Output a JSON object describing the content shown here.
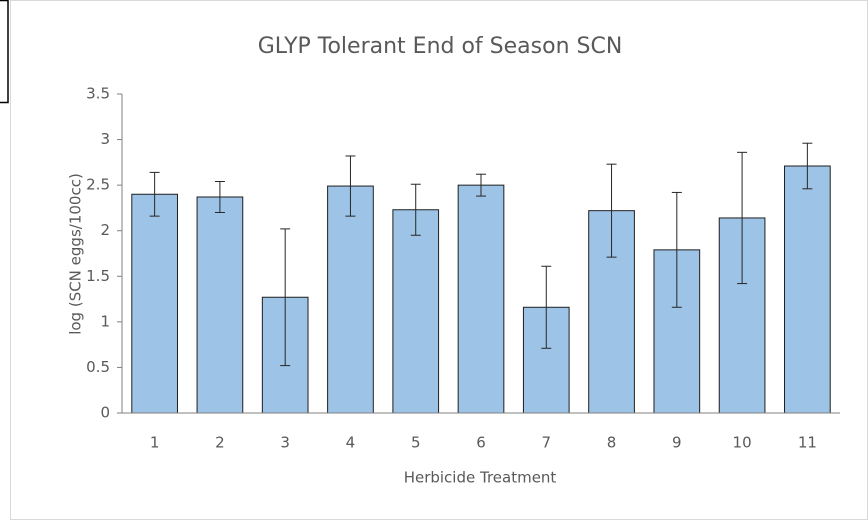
{
  "chart_data": {
    "type": "bar",
    "title": "GLYP Tolerant End of Season SCN",
    "xlabel": "Herbicide Treatment",
    "ylabel": "log (SCN eggs/100cc)",
    "categories": [
      "1",
      "2",
      "3",
      "4",
      "5",
      "6",
      "7",
      "8",
      "9",
      "10",
      "11"
    ],
    "values": [
      2.4,
      2.37,
      1.27,
      2.49,
      2.23,
      2.5,
      1.16,
      2.22,
      1.79,
      2.14,
      2.71
    ],
    "errors": [
      0.24,
      0.17,
      0.75,
      0.33,
      0.28,
      0.12,
      0.45,
      0.51,
      0.63,
      0.72,
      0.25
    ],
    "color": "#9dc3e6",
    "ylim": [
      0,
      3.5
    ],
    "yticks": [
      0,
      0.5,
      1,
      1.5,
      2,
      2.5,
      3,
      3.5
    ],
    "grid": false
  }
}
